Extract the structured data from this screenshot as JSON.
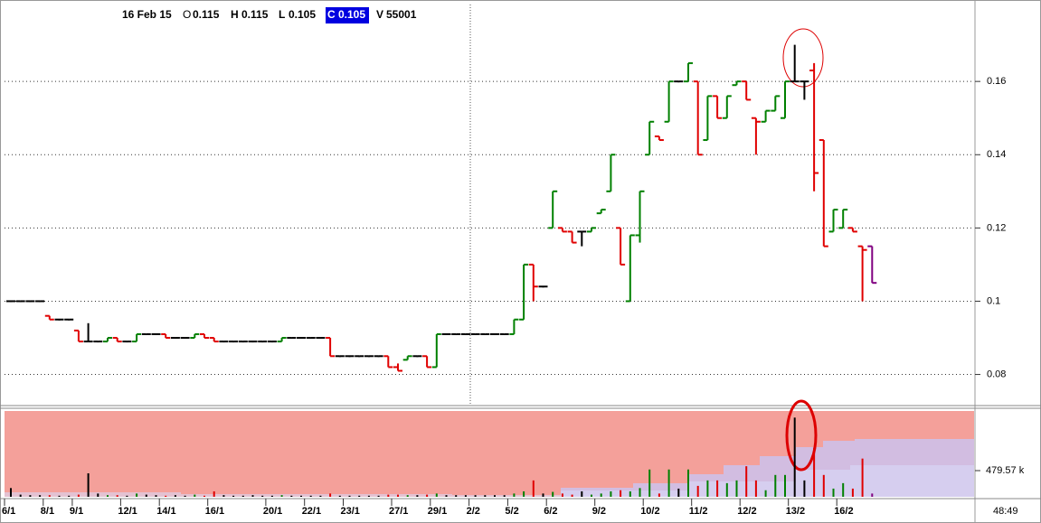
{
  "header": {
    "date": "16 Feb 15",
    "fields": [
      {
        "label": "O",
        "value": 0.115
      },
      {
        "label": "H",
        "value": 0.115
      },
      {
        "label": "L",
        "value": 0.105
      },
      {
        "label": "C",
        "value": 0.105
      },
      {
        "label": "V",
        "value": 55001
      }
    ]
  },
  "clock": "48:49",
  "chart_data": [
    {
      "type": "ohlc",
      "ylim": [
        0.072,
        0.181
      ],
      "yticks": [
        0.08,
        0.1,
        0.12,
        0.14,
        0.16
      ],
      "grid": true,
      "up_color": "#008000",
      "down_color": "#e00000",
      "flat_color": "#000000",
      "last_color": "#800080",
      "ohlc": [
        [
          0.1,
          0.1,
          0.1,
          0.1
        ],
        [
          0.1,
          0.1,
          0.1,
          0.1
        ],
        [
          0.1,
          0.1,
          0.1,
          0.1
        ],
        [
          0.1,
          0.1,
          0.1,
          0.1
        ],
        [
          0.096,
          0.096,
          0.095,
          0.095
        ],
        [
          0.095,
          0.095,
          0.095,
          0.095
        ],
        [
          0.095,
          0.095,
          0.095,
          0.095
        ],
        [
          0.092,
          0.092,
          0.089,
          0.089
        ],
        [
          0.089,
          0.094,
          0.089,
          0.089
        ],
        [
          0.089,
          0.089,
          0.089,
          0.089
        ],
        [
          0.089,
          0.09,
          0.089,
          0.09
        ],
        [
          0.09,
          0.09,
          0.089,
          0.089
        ],
        [
          0.089,
          0.089,
          0.089,
          0.089
        ],
        [
          0.089,
          0.091,
          0.089,
          0.091
        ],
        [
          0.091,
          0.091,
          0.091,
          0.091
        ],
        [
          0.091,
          0.091,
          0.091,
          0.091
        ],
        [
          0.091,
          0.091,
          0.09,
          0.09
        ],
        [
          0.09,
          0.09,
          0.09,
          0.09
        ],
        [
          0.09,
          0.09,
          0.09,
          0.09
        ],
        [
          0.09,
          0.091,
          0.09,
          0.091
        ],
        [
          0.091,
          0.091,
          0.09,
          0.09
        ],
        [
          0.09,
          0.09,
          0.089,
          0.089
        ],
        [
          0.089,
          0.089,
          0.089,
          0.089
        ],
        [
          0.089,
          0.089,
          0.089,
          0.089
        ],
        [
          0.089,
          0.089,
          0.089,
          0.089
        ],
        [
          0.089,
          0.089,
          0.089,
          0.089
        ],
        [
          0.089,
          0.089,
          0.089,
          0.089
        ],
        [
          0.089,
          0.089,
          0.089,
          0.089
        ],
        [
          0.089,
          0.09,
          0.089,
          0.09
        ],
        [
          0.09,
          0.09,
          0.09,
          0.09
        ],
        [
          0.09,
          0.09,
          0.09,
          0.09
        ],
        [
          0.09,
          0.09,
          0.09,
          0.09
        ],
        [
          0.09,
          0.09,
          0.09,
          0.09
        ],
        [
          0.09,
          0.09,
          0.085,
          0.085
        ],
        [
          0.085,
          0.085,
          0.085,
          0.085
        ],
        [
          0.085,
          0.085,
          0.085,
          0.085
        ],
        [
          0.085,
          0.085,
          0.085,
          0.085
        ],
        [
          0.085,
          0.085,
          0.085,
          0.085
        ],
        [
          0.085,
          0.085,
          0.085,
          0.085
        ],
        [
          0.085,
          0.085,
          0.082,
          0.082
        ],
        [
          0.082,
          0.083,
          0.081,
          0.081
        ],
        [
          0.084,
          0.085,
          0.084,
          0.085
        ],
        [
          0.085,
          0.085,
          0.085,
          0.085
        ],
        [
          0.085,
          0.085,
          0.082,
          0.082
        ],
        [
          0.082,
          0.091,
          0.082,
          0.091
        ],
        [
          0.091,
          0.091,
          0.091,
          0.091
        ],
        [
          0.091,
          0.091,
          0.091,
          0.091
        ],
        [
          0.091,
          0.091,
          0.091,
          0.091
        ],
        [
          0.091,
          0.091,
          0.091,
          0.091
        ],
        [
          0.091,
          0.091,
          0.091,
          0.091
        ],
        [
          0.091,
          0.091,
          0.091,
          0.091
        ],
        [
          0.091,
          0.091,
          0.091,
          0.091
        ],
        [
          0.091,
          0.095,
          0.091,
          0.095
        ],
        [
          0.095,
          0.11,
          0.095,
          0.11
        ],
        [
          0.11,
          0.11,
          0.1,
          0.104
        ],
        [
          0.104,
          0.104,
          0.104,
          0.104
        ],
        [
          0.12,
          0.13,
          0.12,
          0.13
        ],
        [
          0.12,
          0.12,
          0.119,
          0.119
        ],
        [
          0.119,
          0.119,
          0.116,
          0.116
        ],
        [
          0.119,
          0.119,
          0.115,
          0.119
        ],
        [
          0.119,
          0.12,
          0.119,
          0.12
        ],
        [
          0.124,
          0.125,
          0.124,
          0.125
        ],
        [
          0.13,
          0.14,
          0.13,
          0.14
        ],
        [
          0.12,
          0.12,
          0.11,
          0.11
        ],
        [
          0.1,
          0.118,
          0.1,
          0.118
        ],
        [
          0.118,
          0.13,
          0.116,
          0.13
        ],
        [
          0.14,
          0.149,
          0.14,
          0.149
        ],
        [
          0.145,
          0.145,
          0.144,
          0.144
        ],
        [
          0.149,
          0.16,
          0.149,
          0.16
        ],
        [
          0.16,
          0.16,
          0.16,
          0.16
        ],
        [
          0.16,
          0.165,
          0.16,
          0.165
        ],
        [
          0.16,
          0.16,
          0.14,
          0.14
        ],
        [
          0.144,
          0.156,
          0.144,
          0.156
        ],
        [
          0.156,
          0.156,
          0.15,
          0.15
        ],
        [
          0.15,
          0.156,
          0.15,
          0.156
        ],
        [
          0.159,
          0.16,
          0.159,
          0.16
        ],
        [
          0.16,
          0.16,
          0.155,
          0.155
        ],
        [
          0.15,
          0.15,
          0.14,
          0.149
        ],
        [
          0.149,
          0.152,
          0.149,
          0.152
        ],
        [
          0.152,
          0.156,
          0.152,
          0.156
        ],
        [
          0.15,
          0.16,
          0.15,
          0.16
        ],
        [
          0.16,
          0.17,
          0.16,
          0.16
        ],
        [
          0.16,
          0.16,
          0.155,
          0.16
        ],
        [
          0.163,
          0.165,
          0.13,
          0.135
        ],
        [
          0.144,
          0.144,
          0.115,
          0.115
        ],
        [
          0.119,
          0.125,
          0.119,
          0.125
        ],
        [
          0.12,
          0.125,
          0.12,
          0.125
        ],
        [
          0.12,
          0.12,
          0.119,
          0.119
        ],
        [
          0.115,
          0.115,
          0.1,
          0.114
        ],
        [
          0.115,
          0.115,
          0.105,
          0.105
        ]
      ]
    },
    {
      "type": "bar",
      "ylim": [
        0,
        1571000
      ],
      "yticks": [
        {
          "value": 479570,
          "label": "479.57 k"
        }
      ],
      "categories": [
        "6/1",
        null,
        null,
        null,
        "8/1",
        null,
        null,
        "9/1",
        null,
        null,
        null,
        null,
        "12/1",
        null,
        null,
        null,
        "14/1",
        null,
        null,
        null,
        null,
        "16/1",
        null,
        null,
        null,
        null,
        null,
        "20/1",
        null,
        null,
        null,
        "22/1",
        null,
        null,
        null,
        "23/1",
        null,
        null,
        null,
        null,
        "27/1",
        null,
        null,
        null,
        "29/1",
        null,
        null,
        null,
        "2/2",
        null,
        null,
        null,
        "5/2",
        null,
        null,
        null,
        "6/2",
        null,
        null,
        null,
        null,
        "9/2",
        null,
        null,
        null,
        null,
        "10/2",
        null,
        null,
        null,
        null,
        "11/2",
        null,
        null,
        null,
        null,
        "12/2",
        null,
        null,
        null,
        null,
        "13/2",
        null,
        null,
        null,
        null,
        "16/2",
        null,
        null,
        null
      ],
      "values": [
        160000,
        40000,
        30000,
        30000,
        30000,
        20000,
        20000,
        40000,
        430000,
        60000,
        30000,
        30000,
        20000,
        60000,
        40000,
        30000,
        20000,
        30000,
        20000,
        40000,
        20000,
        100000,
        30000,
        20000,
        20000,
        30000,
        20000,
        20000,
        30000,
        20000,
        20000,
        20000,
        20000,
        60000,
        20000,
        20000,
        20000,
        20000,
        20000,
        40000,
        40000,
        30000,
        30000,
        40000,
        60000,
        30000,
        30000,
        30000,
        30000,
        30000,
        30000,
        30000,
        60000,
        100000,
        300000,
        60000,
        90000,
        60000,
        40000,
        100000,
        40000,
        60000,
        100000,
        120000,
        100000,
        160000,
        500000,
        60000,
        500000,
        150000,
        500000,
        200000,
        300000,
        300000,
        250000,
        300000,
        560000,
        300000,
        120000,
        400000,
        400000,
        1450000,
        300000,
        900000,
        400000,
        150000,
        250000,
        150000,
        700000,
        60000
      ]
    }
  ]
}
